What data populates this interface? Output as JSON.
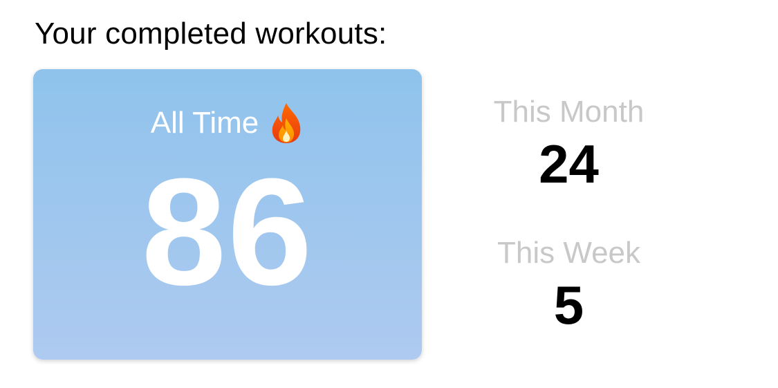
{
  "heading": "Your completed workouts:",
  "all_time": {
    "label": "All Time",
    "icon": "flame-icon",
    "value": "86"
  },
  "this_month": {
    "label": "This Month",
    "value": "24"
  },
  "this_week": {
    "label": "This Week",
    "value": "5"
  },
  "colors": {
    "card_gradient_top": "#8fc3ec",
    "card_gradient_bottom": "#aecaf0",
    "secondary_label": "#c8c8c8"
  }
}
